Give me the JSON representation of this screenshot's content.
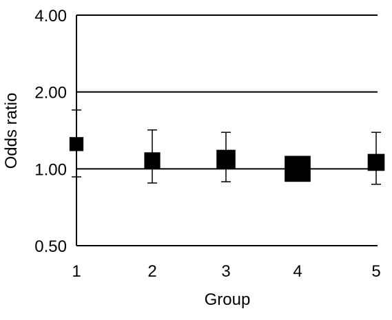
{
  "chart_data": {
    "type": "scatter",
    "title": "",
    "xlabel": "Group",
    "ylabel": "Odds ratio",
    "y_scale": "log",
    "ylim": [
      0.5,
      4.0
    ],
    "y_ticks": [
      {
        "value": 0.5,
        "label": "0.50"
      },
      {
        "value": 1.0,
        "label": "1.00"
      },
      {
        "value": 2.0,
        "label": "2.00"
      },
      {
        "value": 4.0,
        "label": "4.00"
      }
    ],
    "grid": "horizontal",
    "reference_line": 1.0,
    "categories": [
      "1",
      "2",
      "3",
      "4",
      "5"
    ],
    "points": [
      {
        "group": "1",
        "or": 1.25,
        "ci_low": 0.93,
        "ci_high": 1.7,
        "relative_size": 0.7
      },
      {
        "group": "2",
        "or": 1.08,
        "ci_low": 0.88,
        "ci_high": 1.42,
        "relative_size": 0.8
      },
      {
        "group": "3",
        "or": 1.09,
        "ci_low": 0.89,
        "ci_high": 1.39,
        "relative_size": 0.95
      },
      {
        "group": "4",
        "or": 1.0,
        "ci_low": 1.0,
        "ci_high": 1.0,
        "relative_size": 1.3
      },
      {
        "group": "5",
        "or": 1.06,
        "ci_low": 0.87,
        "ci_high": 1.39,
        "relative_size": 0.85
      }
    ],
    "colors": {
      "marker": "#000000",
      "line": "#000000",
      "background": "#ffffff"
    }
  }
}
